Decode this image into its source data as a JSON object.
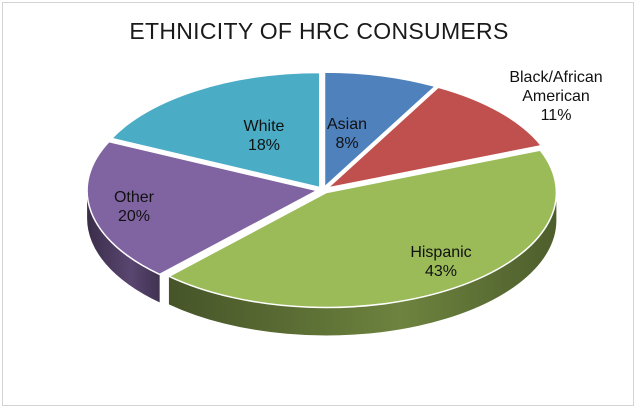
{
  "chart_data": {
    "type": "pie",
    "title": "ETHNICITY OF HRC CONSUMERS",
    "style": "3d-exploded",
    "slices": [
      {
        "name": "Asian",
        "label_lines": [
          "Asian"
        ],
        "value": 8,
        "value_label": "8%",
        "color": "#4f81bd"
      },
      {
        "name": "Black/African American",
        "label_lines": [
          "Black/African",
          "American"
        ],
        "value": 11,
        "value_label": "11%",
        "color": "#c0504d"
      },
      {
        "name": "Hispanic",
        "label_lines": [
          "Hispanic"
        ],
        "value": 43,
        "value_label": "43%",
        "color": "#9bbb59"
      },
      {
        "name": "Other",
        "label_lines": [
          "Other"
        ],
        "value": 20,
        "value_label": "20%",
        "color": "#8064a2"
      },
      {
        "name": "White",
        "label_lines": [
          "White"
        ],
        "value": 18,
        "value_label": "18%",
        "color": "#4bacc6"
      }
    ]
  }
}
